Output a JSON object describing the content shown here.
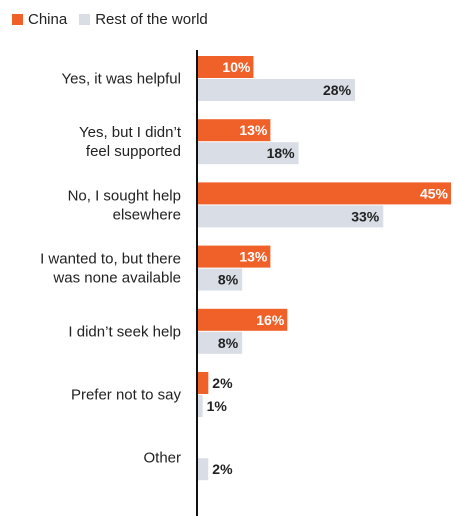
{
  "legend": {
    "items": [
      {
        "label": "China",
        "color": "#f0612a"
      },
      {
        "label": "Rest of the world",
        "color": "#d9dee6"
      }
    ]
  },
  "chart_data": {
    "type": "bar",
    "orientation": "horizontal",
    "categories": [
      [
        "Yes, it was helpful"
      ],
      [
        "Yes, but I didn’t",
        "feel supported"
      ],
      [
        "No, I sought help",
        "elsewhere"
      ],
      [
        "I wanted to, but there",
        "was none available"
      ],
      [
        "I didn’t seek help"
      ],
      [
        "Prefer not to say"
      ],
      [
        "Other"
      ]
    ],
    "series": [
      {
        "name": "China",
        "color": "#f0612a",
        "values": [
          10,
          13,
          45,
          13,
          16,
          2,
          0
        ],
        "labels": [
          "10%",
          "13%",
          "45%",
          "13%",
          "16%",
          "2%",
          ""
        ]
      },
      {
        "name": "Rest of the world",
        "color": "#d9dee6",
        "values": [
          28,
          18,
          33,
          8,
          8,
          1,
          2
        ],
        "labels": [
          "28%",
          "18%",
          "33%",
          "8%",
          "8%",
          "1%",
          "2%"
        ]
      }
    ],
    "xlim": [
      0,
      45
    ],
    "legend_position": "top-left",
    "grid": false
  }
}
